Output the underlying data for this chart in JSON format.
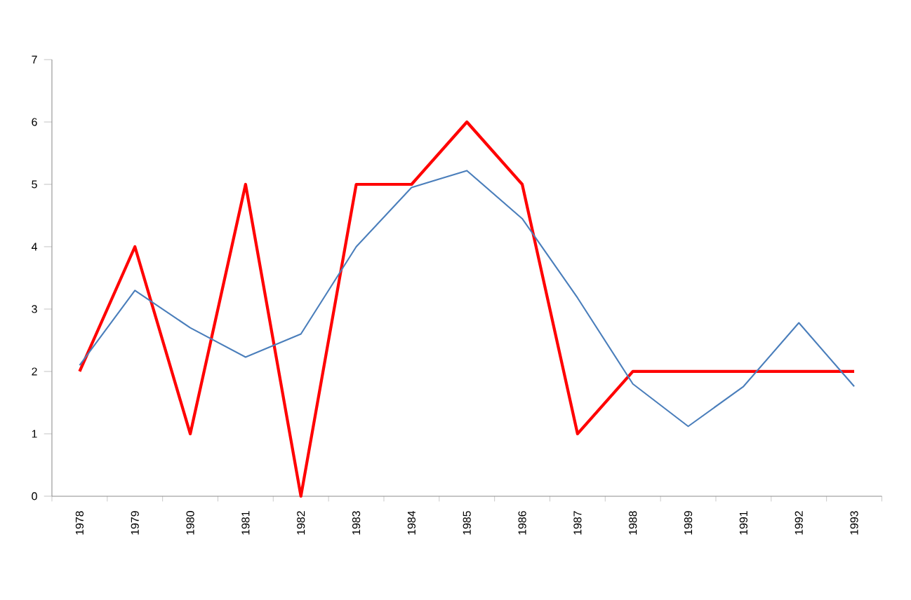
{
  "chart_data": {
    "type": "line",
    "categories": [
      "1978",
      "1979",
      "1980",
      "1981",
      "1982",
      "1983",
      "1984",
      "1985",
      "1986",
      "1987",
      "1988",
      "1989",
      "1991",
      "1992",
      "1993"
    ],
    "series": [
      {
        "color": "#ff0000",
        "values": [
          2,
          4,
          1,
          5,
          0,
          5,
          5,
          6,
          5,
          1,
          2,
          2,
          2,
          2,
          2
        ]
      },
      {
        "color": "#4a7ebb",
        "values": [
          2.1,
          3.3,
          2.7,
          2.23,
          2.6,
          4.0,
          4.95,
          5.22,
          4.45,
          3.18,
          1.8,
          1.12,
          1.76,
          2.78,
          1.76
        ]
      }
    ],
    "ylim": [
      0,
      7
    ],
    "yticks": [
      0,
      1,
      2,
      3,
      4,
      5,
      6,
      7
    ],
    "marker": "none"
  }
}
